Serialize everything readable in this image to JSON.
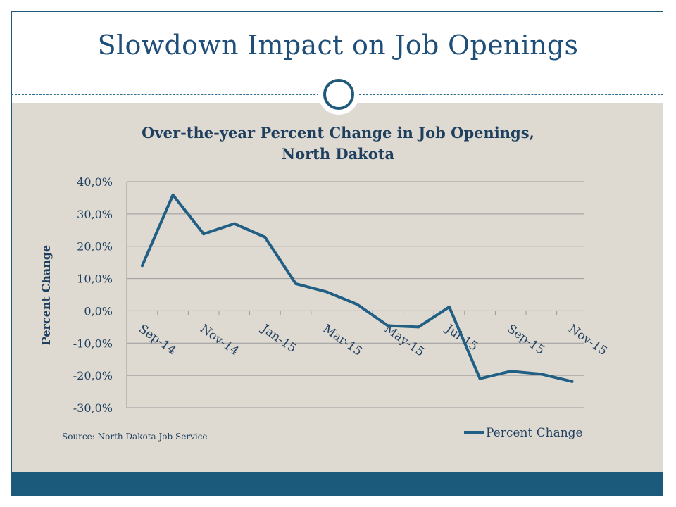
{
  "slide": {
    "title": "Slowdown Impact on Job Openings",
    "colors": {
      "accent": "#1f4e79",
      "panel": "#dedad2",
      "footer": "#1b5a7a",
      "line": "#215f84"
    }
  },
  "chart_data": {
    "type": "line",
    "title": "Over-the-year Percent Change in Job Openings, North Dakota",
    "title_lines": [
      "Over-the-year Percent Change in Job Openings,",
      "North Dakota"
    ],
    "ylabel": "Percent Change",
    "xlabel": "",
    "ylim": [
      -30,
      40
    ],
    "yticks": [
      40,
      30,
      20,
      10,
      0,
      -10,
      -20,
      -30
    ],
    "ytick_labels": [
      "40,0%",
      "30,0%",
      "20,0%",
      "10,0%",
      "0,0%",
      "-10,0%",
      "-20,0%",
      "-30,0%"
    ],
    "x": [
      "Sep-14",
      "Oct-14",
      "Nov-14",
      "Dec-14",
      "Jan-15",
      "Feb-15",
      "Mar-15",
      "Apr-15",
      "May-15",
      "Jun-15",
      "Jul-15",
      "Aug-15",
      "Sep-15",
      "Oct-15",
      "Nov-15"
    ],
    "xtick_labels": [
      "Sep-14",
      "Nov-14",
      "Jan-15",
      "Mar-15",
      "May-15",
      "Jul-15",
      "Sep-15",
      "Nov-15"
    ],
    "series": [
      {
        "name": "Percent Change",
        "values": [
          14.0,
          35.9,
          23.8,
          27.0,
          22.8,
          8.4,
          5.9,
          2.0,
          -4.6,
          -5.0,
          1.2,
          -21.0,
          -18.7,
          -19.6,
          -21.9
        ]
      }
    ],
    "legend": {
      "position": "bottom-right",
      "label": "Percent Change"
    },
    "grid": true,
    "source": "Source:  North Dakota Job Service"
  }
}
